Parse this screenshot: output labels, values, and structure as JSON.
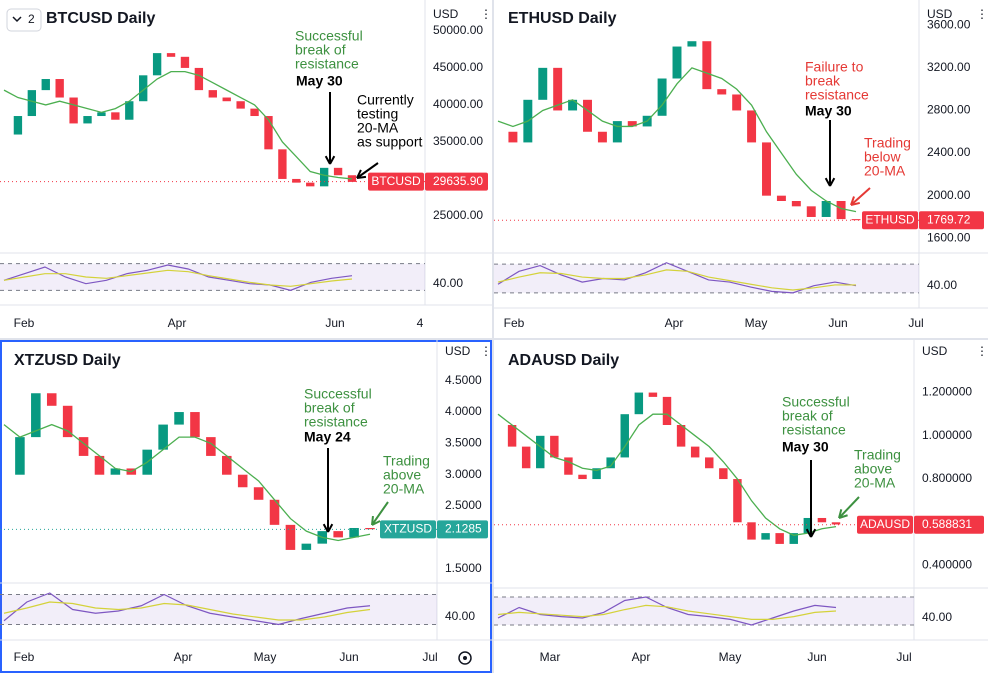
{
  "button_label": "2",
  "chart_data": [
    {
      "type": "candlestick",
      "title": "BTCUSD Daily",
      "currency": "USD",
      "symbol": "BTCUSD",
      "price": {
        "value": 29635.9,
        "label": "29635.90"
      },
      "price_color": "#f23645",
      "ylim": [
        20400,
        53500
      ],
      "yticks": [
        {
          "value": 25000,
          "label": "25000.00"
        },
        {
          "value": 35000,
          "label": "35000.00"
        },
        {
          "value": 40000,
          "label": "40000.00"
        },
        {
          "value": 45000,
          "label": "45000.00"
        },
        {
          "value": 50000,
          "label": "50000.00"
        }
      ],
      "x_labels": [
        "Feb",
        "Apr",
        "Jun",
        "4"
      ],
      "values": [
        36000,
        38500,
        42000,
        43500,
        41000,
        37500,
        38500,
        39000,
        38000,
        40500,
        44000,
        47000,
        46500,
        45000,
        42000,
        41000,
        40500,
        39500,
        38500,
        34000,
        30000,
        29500,
        29000,
        31500,
        30500,
        29600
      ],
      "ma": [
        42000,
        41000,
        40500,
        40000,
        40500,
        40000,
        39500,
        39000,
        39500,
        40500,
        42000,
        43500,
        44500,
        44500,
        44000,
        43000,
        42000,
        41000,
        40000,
        38000,
        35000,
        33000,
        31000,
        30500,
        30200,
        30000
      ],
      "rsi": [
        45,
        55,
        65,
        50,
        40,
        45,
        55,
        60,
        68,
        62,
        50,
        45,
        40,
        38,
        30,
        42,
        48,
        52
      ],
      "rsi_ma": [
        45,
        50,
        55,
        55,
        50,
        48,
        52,
        56,
        60,
        58,
        52,
        47,
        42,
        38,
        36,
        40,
        44,
        47
      ],
      "rsi_ylim": [
        20,
        80
      ],
      "rsi_bands": [
        30,
        70
      ],
      "rsi_ticks": [
        {
          "value": 40,
          "label": "40.00"
        }
      ],
      "annotations": [
        {
          "lines": [
            "Successful",
            "break of",
            "resistance"
          ],
          "color": "#3d9140",
          "bold": false
        },
        {
          "lines": [
            "May 30"
          ],
          "color": "#000000",
          "bold": true
        },
        {
          "lines": [
            "Currently",
            "testing",
            "20-MA",
            "as support"
          ],
          "color": "#000000",
          "bold": false
        }
      ]
    },
    {
      "type": "candlestick",
      "title": "ETHUSD Daily",
      "currency": "USD",
      "symbol": "ETHUSD",
      "price": {
        "value": 1769.72,
        "label": "1769.72"
      },
      "price_color": "#f23645",
      "ylim": [
        1490,
        3790
      ],
      "yticks": [
        {
          "value": 1600,
          "label": "1600.00"
        },
        {
          "value": 2000,
          "label": "2000.00"
        },
        {
          "value": 2400,
          "label": "2400.00"
        },
        {
          "value": 2800,
          "label": "2800.00"
        },
        {
          "value": 3200,
          "label": "3200.00"
        },
        {
          "value": 3600,
          "label": "3600.00"
        }
      ],
      "x_labels": [
        "Feb",
        "Apr",
        "May",
        "Jun",
        "Jul"
      ],
      "values": [
        2600,
        2500,
        2900,
        3200,
        2800,
        2900,
        2600,
        2500,
        2700,
        2650,
        2750,
        3100,
        3400,
        3450,
        3000,
        2950,
        2800,
        2500,
        2000,
        1950,
        1900,
        1800,
        1950,
        1780,
        1770
      ],
      "ma": [
        2700,
        2650,
        2700,
        2800,
        2850,
        2900,
        2800,
        2700,
        2650,
        2650,
        2700,
        2850,
        3050,
        3200,
        3150,
        3100,
        3000,
        2850,
        2600,
        2400,
        2200,
        2050,
        1950,
        1880,
        1850
      ],
      "rsi": [
        42,
        60,
        68,
        55,
        45,
        50,
        48,
        58,
        72,
        60,
        48,
        45,
        38,
        32,
        30,
        40,
        45,
        40
      ],
      "rsi_ma": [
        45,
        52,
        58,
        57,
        52,
        50,
        50,
        55,
        62,
        60,
        52,
        47,
        42,
        37,
        34,
        37,
        41,
        41
      ],
      "rsi_ylim": [
        20,
        80
      ],
      "rsi_bands": [
        30,
        70
      ],
      "rsi_ticks": [
        {
          "value": 40,
          "label": "40.00"
        }
      ],
      "annotations": [
        {
          "lines": [
            "Failure to",
            "break",
            "resistance"
          ],
          "color": "#e53935",
          "bold": false
        },
        {
          "lines": [
            "May 30"
          ],
          "color": "#000000",
          "bold": true
        },
        {
          "lines": [
            "Trading",
            "below",
            "20-MA"
          ],
          "color": "#e53935",
          "bold": false
        }
      ]
    },
    {
      "type": "candlestick",
      "title": "XTZUSD Daily",
      "currency": "USD",
      "symbol": "XTZUSD",
      "price": {
        "value": 2.1285,
        "label": "2.1285"
      },
      "price_color": "#26a69a",
      "ylim": [
        1.32,
        5.07
      ],
      "yticks": [
        {
          "value": 1.5,
          "label": "1.5000"
        },
        {
          "value": 2.5,
          "label": "2.5000"
        },
        {
          "value": 3,
          "label": "3.0000"
        },
        {
          "value": 3.5,
          "label": "3.5000"
        },
        {
          "value": 4,
          "label": "4.0000"
        },
        {
          "value": 4.5,
          "label": "4.5000"
        }
      ],
      "x_labels": [
        "Feb",
        "Apr",
        "May",
        "Jun",
        "Jul"
      ],
      "values": [
        3.0,
        3.6,
        4.3,
        4.1,
        3.6,
        3.3,
        3.0,
        3.1,
        3.0,
        3.4,
        3.8,
        4.0,
        3.6,
        3.3,
        3.0,
        2.8,
        2.6,
        2.2,
        1.8,
        1.9,
        2.1,
        2.0,
        2.15,
        2.13
      ],
      "ma": [
        3.8,
        3.6,
        3.7,
        3.8,
        3.7,
        3.5,
        3.3,
        3.1,
        3.05,
        3.2,
        3.4,
        3.6,
        3.6,
        3.5,
        3.3,
        3.1,
        2.9,
        2.6,
        2.3,
        2.1,
        2.0,
        1.95,
        2.0,
        2.05
      ],
      "rsi": [
        35,
        60,
        72,
        50,
        45,
        48,
        55,
        70,
        55,
        45,
        40,
        35,
        30,
        38,
        45,
        52,
        55
      ],
      "rsi_ma": [
        45,
        52,
        60,
        58,
        52,
        50,
        52,
        58,
        56,
        50,
        44,
        40,
        36,
        36,
        40,
        46,
        50
      ],
      "rsi_ylim": [
        20,
        80
      ],
      "rsi_bands": [
        30,
        70
      ],
      "rsi_ticks": [
        {
          "value": 40,
          "label": "40.00"
        }
      ],
      "annotations": [
        {
          "lines": [
            "Successful",
            "break of",
            "resistance"
          ],
          "color": "#3d9140",
          "bold": false
        },
        {
          "lines": [
            "May 24"
          ],
          "color": "#000000",
          "bold": true
        },
        {
          "lines": [
            "Trading",
            "above",
            "20-MA"
          ],
          "color": "#3d9140",
          "bold": false
        }
      ]
    },
    {
      "type": "candlestick",
      "title": "ADAUSD Daily",
      "currency": "USD",
      "symbol": "ADAUSD",
      "price": {
        "value": 0.588831,
        "label": "0.588831"
      },
      "price_color": "#f23645",
      "ylim": [
        0.31,
        1.42
      ],
      "yticks": [
        {
          "value": 0.4,
          "label": "0.400000"
        },
        {
          "value": 0.8,
          "label": "0.800000"
        },
        {
          "value": 1,
          "label": "1.000000"
        },
        {
          "value": 1.2,
          "label": "1.200000"
        }
      ],
      "x_labels": [
        "Mar",
        "Apr",
        "May",
        "Jun",
        "Jul"
      ],
      "values": [
        1.05,
        0.95,
        0.85,
        1.0,
        0.9,
        0.82,
        0.8,
        0.85,
        0.9,
        1.1,
        1.2,
        1.18,
        1.05,
        0.95,
        0.9,
        0.85,
        0.8,
        0.6,
        0.52,
        0.55,
        0.5,
        0.55,
        0.62,
        0.6,
        0.59
      ],
      "ma": [
        1.1,
        1.05,
        1.0,
        0.95,
        0.9,
        0.88,
        0.85,
        0.84,
        0.86,
        0.95,
        1.05,
        1.1,
        1.1,
        1.05,
        1.0,
        0.95,
        0.88,
        0.8,
        0.7,
        0.62,
        0.57,
        0.54,
        0.55,
        0.57,
        0.58
      ],
      "rsi": [
        40,
        55,
        45,
        42,
        40,
        48,
        65,
        70,
        55,
        45,
        42,
        38,
        30,
        40,
        50,
        58,
        55
      ],
      "rsi_ma": [
        45,
        48,
        46,
        44,
        42,
        45,
        52,
        58,
        56,
        50,
        46,
        42,
        38,
        38,
        42,
        48,
        50
      ],
      "rsi_ylim": [
        20,
        80
      ],
      "rsi_bands": [
        30,
        70
      ],
      "rsi_ticks": [
        {
          "value": 40,
          "label": "40.00"
        }
      ],
      "annotations": [
        {
          "lines": [
            "Successful",
            "break of",
            "resistance"
          ],
          "color": "#3d9140",
          "bold": false
        },
        {
          "lines": [
            "May 30"
          ],
          "color": "#000000",
          "bold": true
        },
        {
          "lines": [
            "Trading",
            "above",
            "20-MA"
          ],
          "color": "#3d9140",
          "bold": false
        }
      ]
    }
  ]
}
